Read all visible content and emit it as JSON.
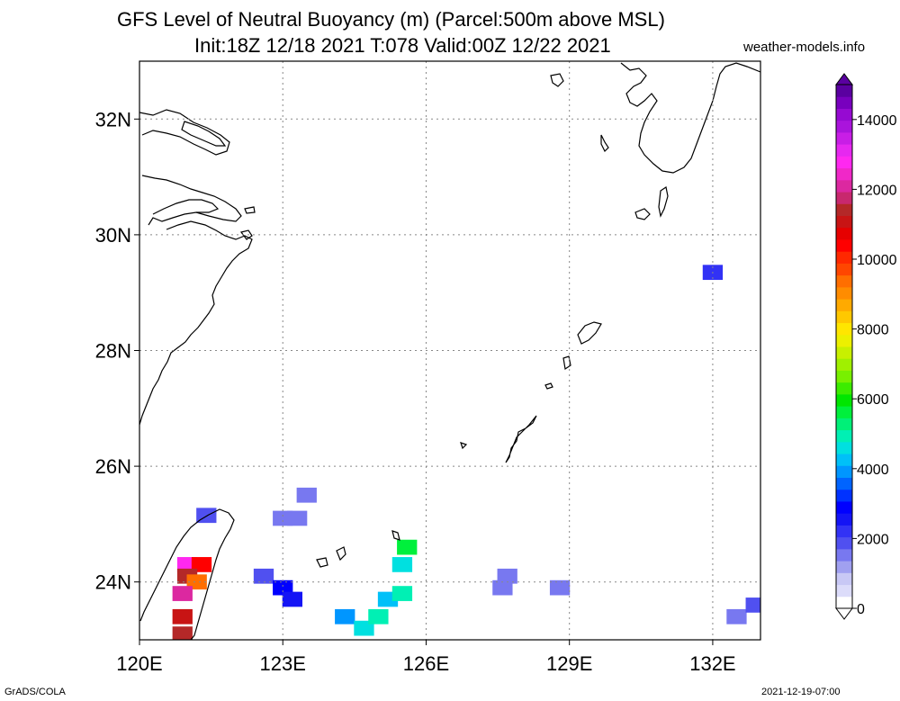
{
  "title_line1": "GFS Level of Neutral Buoyancy (m) (Parcel:500m above MSL)",
  "title_line2": "Init:18Z 12/18 2021 T:078 Valid:00Z 12/22 2021",
  "source": "weather-models.info",
  "footer_left": "GrADS/COLA",
  "footer_right": "2021-12-19-07:00",
  "chart_data": {
    "type": "heatmap",
    "variable": "Level of Neutral Buoyancy",
    "units": "m",
    "x_ticks": [
      "120E",
      "123E",
      "126E",
      "129E",
      "132E"
    ],
    "y_ticks": [
      "24N",
      "26N",
      "28N",
      "30N",
      "32N"
    ],
    "lon_range": [
      120,
      133
    ],
    "lat_range": [
      23,
      33
    ],
    "grid": true,
    "colorbar": {
      "range": [
        0,
        15000
      ],
      "tick_values": [
        0,
        2000,
        4000,
        6000,
        8000,
        10000,
        12000,
        14000
      ],
      "tick_labels": [
        "0",
        "2000",
        "4000",
        "6000",
        "8000",
        "10000",
        "12000",
        "14000"
      ],
      "colors": [
        "#ffffff",
        "#dcdcfa",
        "#c8c8f5",
        "#a0a0f0",
        "#7878f0",
        "#5050f0",
        "#3232f5",
        "#1414f5",
        "#0000ff",
        "#0032ff",
        "#0064ff",
        "#0096ff",
        "#00c0f8",
        "#00e0e0",
        "#00f0b4",
        "#00f078",
        "#00f03c",
        "#00e600",
        "#3cec00",
        "#78f000",
        "#a0f000",
        "#c8f000",
        "#ecf000",
        "#ffe600",
        "#ffc800",
        "#ffaa00",
        "#ff8c00",
        "#ff6e00",
        "#ff4600",
        "#ff2800",
        "#ff0000",
        "#e60000",
        "#c81414",
        "#b42828",
        "#c8286e",
        "#dc28a0",
        "#f028c8",
        "#ff28f0",
        "#e628f0",
        "#c81ee6",
        "#aa14dc",
        "#960ad2",
        "#7800be",
        "#5a00a0"
      ]
    },
    "cells": [
      {
        "lon": 121.4,
        "lat": 25.15,
        "value": 1900
      },
      {
        "lon": 121.0,
        "lat": 24.3,
        "value": 12800
      },
      {
        "lon": 121.3,
        "lat": 24.3,
        "value": 10500
      },
      {
        "lon": 121.0,
        "lat": 24.1,
        "value": 11500
      },
      {
        "lon": 121.2,
        "lat": 24.0,
        "value": 9500
      },
      {
        "lon": 120.9,
        "lat": 23.8,
        "value": 12000
      },
      {
        "lon": 120.9,
        "lat": 23.4,
        "value": 11000
      },
      {
        "lon": 120.9,
        "lat": 23.1,
        "value": 11500
      },
      {
        "lon": 122.6,
        "lat": 24.1,
        "value": 1800
      },
      {
        "lon": 123.0,
        "lat": 23.9,
        "value": 2800
      },
      {
        "lon": 123.2,
        "lat": 23.7,
        "value": 2600
      },
      {
        "lon": 123.0,
        "lat": 25.1,
        "value": 1500
      },
      {
        "lon": 123.3,
        "lat": 25.1,
        "value": 1600
      },
      {
        "lon": 123.5,
        "lat": 25.5,
        "value": 1700
      },
      {
        "lon": 124.3,
        "lat": 23.4,
        "value": 3800
      },
      {
        "lon": 124.7,
        "lat": 23.2,
        "value": 4600
      },
      {
        "lon": 125.0,
        "lat": 23.4,
        "value": 4800
      },
      {
        "lon": 125.2,
        "lat": 23.7,
        "value": 4200
      },
      {
        "lon": 125.5,
        "lat": 23.8,
        "value": 5000
      },
      {
        "lon": 125.5,
        "lat": 24.3,
        "value": 4500
      },
      {
        "lon": 125.6,
        "lat": 24.6,
        "value": 5500
      },
      {
        "lon": 127.7,
        "lat": 24.1,
        "value": 1600
      },
      {
        "lon": 127.6,
        "lat": 23.9,
        "value": 1700
      },
      {
        "lon": 128.8,
        "lat": 23.9,
        "value": 1600
      },
      {
        "lon": 132.0,
        "lat": 29.35,
        "value": 2100
      },
      {
        "lon": 132.5,
        "lat": 23.4,
        "value": 1700
      },
      {
        "lon": 132.9,
        "lat": 23.6,
        "value": 1900
      }
    ]
  }
}
